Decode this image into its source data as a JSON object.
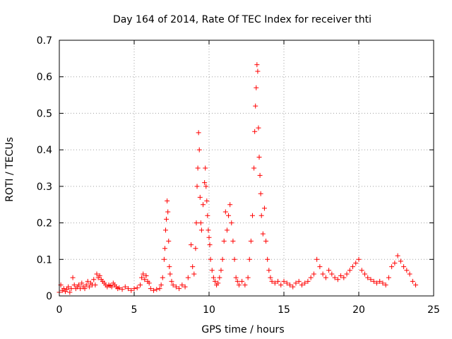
{
  "chart_data": {
    "type": "scatter",
    "title": "Day 164 of 2014, Rate Of TEC Index for receiver thti",
    "xlabel": "GPS time / hours",
    "ylabel": "ROTI / TECUs",
    "xlim": [
      0,
      25
    ],
    "ylim": [
      0,
      0.7
    ],
    "xticks": [
      0,
      5,
      10,
      15,
      20,
      25
    ],
    "xtick_labels": [
      "0",
      "5",
      "10",
      "15",
      "20",
      "25"
    ],
    "yticks": [
      0,
      0.1,
      0.2,
      0.3,
      0.4,
      0.5,
      0.6,
      0.7
    ],
    "ytick_labels": [
      "0",
      "0.1",
      "0.2",
      "0.3",
      "0.4",
      "0.5",
      "0.6",
      "0.7"
    ],
    "grid": true,
    "marker": "+",
    "color": "#ff0000",
    "series": [
      {
        "name": "ROTI",
        "points": [
          [
            0.0,
            0.01
          ],
          [
            0.1,
            0.03
          ],
          [
            0.2,
            0.015
          ],
          [
            0.3,
            0.02
          ],
          [
            0.4,
            0.012
          ],
          [
            0.5,
            0.018
          ],
          [
            0.6,
            0.025
          ],
          [
            0.7,
            0.01
          ],
          [
            0.8,
            0.02
          ],
          [
            0.9,
            0.05
          ],
          [
            1.0,
            0.03
          ],
          [
            1.1,
            0.02
          ],
          [
            1.2,
            0.025
          ],
          [
            1.3,
            0.03
          ],
          [
            1.4,
            0.02
          ],
          [
            1.5,
            0.035
          ],
          [
            1.6,
            0.025
          ],
          [
            1.7,
            0.02
          ],
          [
            1.8,
            0.03
          ],
          [
            1.9,
            0.04
          ],
          [
            2.0,
            0.025
          ],
          [
            2.1,
            0.035
          ],
          [
            2.2,
            0.03
          ],
          [
            2.3,
            0.045
          ],
          [
            2.4,
            0.03
          ],
          [
            2.5,
            0.06
          ],
          [
            2.6,
            0.05
          ],
          [
            2.7,
            0.055
          ],
          [
            2.8,
            0.045
          ],
          [
            2.9,
            0.04
          ],
          [
            3.0,
            0.035
          ],
          [
            3.1,
            0.03
          ],
          [
            3.2,
            0.025
          ],
          [
            3.3,
            0.03
          ],
          [
            3.4,
            0.028
          ],
          [
            3.5,
            0.025
          ],
          [
            3.6,
            0.035
          ],
          [
            3.7,
            0.03
          ],
          [
            3.8,
            0.025
          ],
          [
            3.9,
            0.02
          ],
          [
            4.0,
            0.022
          ],
          [
            4.2,
            0.018
          ],
          [
            4.4,
            0.025
          ],
          [
            4.6,
            0.02
          ],
          [
            4.8,
            0.015
          ],
          [
            5.0,
            0.02
          ],
          [
            5.2,
            0.022
          ],
          [
            5.4,
            0.03
          ],
          [
            5.5,
            0.05
          ],
          [
            5.6,
            0.06
          ],
          [
            5.7,
            0.045
          ],
          [
            5.8,
            0.055
          ],
          [
            5.9,
            0.04
          ],
          [
            6.0,
            0.035
          ],
          [
            6.1,
            0.02
          ],
          [
            6.3,
            0.015
          ],
          [
            6.5,
            0.018
          ],
          [
            6.7,
            0.02
          ],
          [
            6.8,
            0.03
          ],
          [
            6.9,
            0.05
          ],
          [
            7.0,
            0.1
          ],
          [
            7.05,
            0.13
          ],
          [
            7.1,
            0.18
          ],
          [
            7.15,
            0.21
          ],
          [
            7.2,
            0.26
          ],
          [
            7.25,
            0.23
          ],
          [
            7.3,
            0.15
          ],
          [
            7.35,
            0.08
          ],
          [
            7.4,
            0.06
          ],
          [
            7.5,
            0.04
          ],
          [
            7.6,
            0.03
          ],
          [
            7.8,
            0.025
          ],
          [
            8.0,
            0.02
          ],
          [
            8.2,
            0.03
          ],
          [
            8.4,
            0.025
          ],
          [
            8.6,
            0.05
          ],
          [
            8.8,
            0.14
          ],
          [
            8.9,
            0.08
          ],
          [
            9.0,
            0.06
          ],
          [
            9.1,
            0.13
          ],
          [
            9.15,
            0.2
          ],
          [
            9.2,
            0.3
          ],
          [
            9.25,
            0.35
          ],
          [
            9.3,
            0.447
          ],
          [
            9.35,
            0.4
          ],
          [
            9.4,
            0.27
          ],
          [
            9.45,
            0.2
          ],
          [
            9.5,
            0.18
          ],
          [
            9.6,
            0.25
          ],
          [
            9.7,
            0.31
          ],
          [
            9.75,
            0.35
          ],
          [
            9.8,
            0.3
          ],
          [
            9.85,
            0.26
          ],
          [
            9.9,
            0.22
          ],
          [
            9.95,
            0.18
          ],
          [
            10.0,
            0.16
          ],
          [
            10.05,
            0.14
          ],
          [
            10.1,
            0.1
          ],
          [
            10.2,
            0.07
          ],
          [
            10.3,
            0.05
          ],
          [
            10.4,
            0.04
          ],
          [
            10.5,
            0.03
          ],
          [
            10.6,
            0.035
          ],
          [
            10.7,
            0.05
          ],
          [
            10.8,
            0.07
          ],
          [
            10.9,
            0.1
          ],
          [
            11.0,
            0.15
          ],
          [
            11.1,
            0.23
          ],
          [
            11.2,
            0.18
          ],
          [
            11.3,
            0.22
          ],
          [
            11.4,
            0.25
          ],
          [
            11.5,
            0.2
          ],
          [
            11.6,
            0.15
          ],
          [
            11.7,
            0.1
          ],
          [
            11.8,
            0.05
          ],
          [
            11.9,
            0.04
          ],
          [
            12.0,
            0.03
          ],
          [
            12.2,
            0.04
          ],
          [
            12.4,
            0.03
          ],
          [
            12.6,
            0.05
          ],
          [
            12.7,
            0.1
          ],
          [
            12.8,
            0.15
          ],
          [
            12.9,
            0.22
          ],
          [
            13.0,
            0.35
          ],
          [
            13.05,
            0.45
          ],
          [
            13.1,
            0.52
          ],
          [
            13.15,
            0.57
          ],
          [
            13.2,
            0.633
          ],
          [
            13.25,
            0.615
          ],
          [
            13.3,
            0.46
          ],
          [
            13.35,
            0.38
          ],
          [
            13.4,
            0.33
          ],
          [
            13.45,
            0.28
          ],
          [
            13.5,
            0.22
          ],
          [
            13.6,
            0.17
          ],
          [
            13.7,
            0.24
          ],
          [
            13.8,
            0.15
          ],
          [
            13.9,
            0.1
          ],
          [
            14.0,
            0.07
          ],
          [
            14.1,
            0.05
          ],
          [
            14.2,
            0.04
          ],
          [
            14.4,
            0.035
          ],
          [
            14.6,
            0.04
          ],
          [
            14.8,
            0.03
          ],
          [
            15.0,
            0.04
          ],
          [
            15.2,
            0.035
          ],
          [
            15.4,
            0.03
          ],
          [
            15.6,
            0.025
          ],
          [
            15.8,
            0.035
          ],
          [
            16.0,
            0.04
          ],
          [
            16.2,
            0.03
          ],
          [
            16.4,
            0.035
          ],
          [
            16.6,
            0.04
          ],
          [
            16.8,
            0.05
          ],
          [
            17.0,
            0.06
          ],
          [
            17.2,
            0.1
          ],
          [
            17.4,
            0.08
          ],
          [
            17.6,
            0.06
          ],
          [
            17.8,
            0.05
          ],
          [
            18.0,
            0.07
          ],
          [
            18.2,
            0.06
          ],
          [
            18.4,
            0.05
          ],
          [
            18.6,
            0.045
          ],
          [
            18.8,
            0.055
          ],
          [
            19.0,
            0.05
          ],
          [
            19.2,
            0.06
          ],
          [
            19.4,
            0.07
          ],
          [
            19.6,
            0.08
          ],
          [
            19.8,
            0.09
          ],
          [
            20.0,
            0.1
          ],
          [
            20.2,
            0.07
          ],
          [
            20.4,
            0.06
          ],
          [
            20.6,
            0.05
          ],
          [
            20.8,
            0.045
          ],
          [
            21.0,
            0.04
          ],
          [
            21.2,
            0.035
          ],
          [
            21.4,
            0.04
          ],
          [
            21.6,
            0.035
          ],
          [
            21.8,
            0.03
          ],
          [
            22.0,
            0.05
          ],
          [
            22.2,
            0.08
          ],
          [
            22.4,
            0.09
          ],
          [
            22.6,
            0.11
          ],
          [
            22.8,
            0.095
          ],
          [
            23.0,
            0.08
          ],
          [
            23.2,
            0.07
          ],
          [
            23.4,
            0.06
          ],
          [
            23.6,
            0.04
          ],
          [
            23.8,
            0.03
          ]
        ]
      }
    ]
  }
}
